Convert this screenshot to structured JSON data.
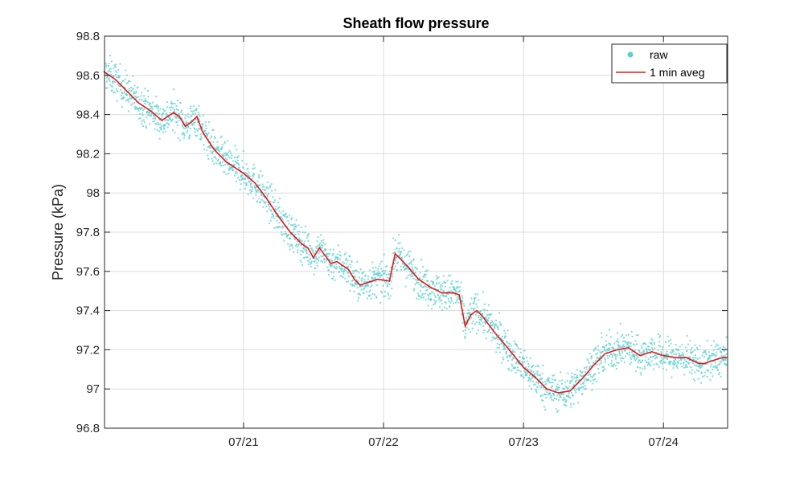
{
  "chart_data": {
    "type": "line",
    "title": "Sheath flow pressure",
    "xlabel": "",
    "ylabel": "Pressure (kPa)",
    "ylim": [
      96.8,
      98.8
    ],
    "yticks": [
      96.8,
      97,
      97.2,
      97.4,
      97.6,
      97.8,
      98,
      98.2,
      98.4,
      98.6,
      98.8
    ],
    "ytick_labels": [
      "96.8",
      "97",
      "97.2",
      "97.4",
      "97.6",
      "97.8",
      "98",
      "98.2",
      "98.4",
      "98.6",
      "98.8"
    ],
    "xlim": [
      "07/20 00:10",
      "07/24 11:00"
    ],
    "xticks": [
      "07/21",
      "07/22",
      "07/23",
      "07/24"
    ],
    "grid": true,
    "legend_position": "top-right",
    "series": [
      {
        "name": "raw",
        "kind": "scatter",
        "color": "#5ccfcf",
        "spread": 0.045,
        "note_values": "raw points scatter around the 1 min average"
      },
      {
        "name": "1 min aveg",
        "kind": "line",
        "color": "#e8171b",
        "x": [
          "07/20 00:00",
          "07/20 02:00",
          "07/20 04:00",
          "07/20 06:00",
          "07/20 08:00",
          "07/20 10:00",
          "07/20 12:00",
          "07/20 13:00",
          "07/20 14:00",
          "07/20 15:00",
          "07/20 16:00",
          "07/20 17:00",
          "07/20 19:00",
          "07/20 21:00",
          "07/21 00:00",
          "07/21 02:00",
          "07/21 04:00",
          "07/21 06:00",
          "07/21 08:00",
          "07/21 10:00",
          "07/21 11:00",
          "07/21 12:00",
          "07/21 13:00",
          "07/21 14:00",
          "07/21 15:00",
          "07/21 16:00",
          "07/21 18:00",
          "07/21 19:00",
          "07/21 20:00",
          "07/21 21:00",
          "07/21 22:00",
          "07/21 23:00",
          "07/22 01:00",
          "07/22 02:00",
          "07/22 04:00",
          "07/22 06:00",
          "07/22 08:00",
          "07/22 10:00",
          "07/22 12:00",
          "07/22 13:00",
          "07/22 14:00",
          "07/22 15:00",
          "07/22 16:00",
          "07/22 17:00",
          "07/22 19:00",
          "07/22 21:00",
          "07/23 00:00",
          "07/23 02:00",
          "07/23 04:00",
          "07/23 06:00",
          "07/23 08:00",
          "07/23 10:00",
          "07/23 12:00",
          "07/23 14:00",
          "07/23 16:00",
          "07/23 18:00",
          "07/23 20:00",
          "07/23 22:00",
          "07/24 00:00",
          "07/24 02:00",
          "07/24 04:00",
          "07/24 06:00",
          "07/24 07:00",
          "07/24 08:00",
          "07/24 10:00",
          "07/24 11:00"
        ],
        "y": [
          98.62,
          98.58,
          98.52,
          98.46,
          98.42,
          98.37,
          98.41,
          98.39,
          98.34,
          98.36,
          98.39,
          98.31,
          98.22,
          98.16,
          98.1,
          98.05,
          97.97,
          97.88,
          97.8,
          97.74,
          97.72,
          97.67,
          97.72,
          97.68,
          97.64,
          97.65,
          97.61,
          97.56,
          97.53,
          97.54,
          97.55,
          97.56,
          97.55,
          97.69,
          97.63,
          97.56,
          97.52,
          97.49,
          97.49,
          97.48,
          97.32,
          97.38,
          97.4,
          97.37,
          97.29,
          97.22,
          97.11,
          97.06,
          97.0,
          96.98,
          96.99,
          97.05,
          97.12,
          97.18,
          97.2,
          97.21,
          97.17,
          97.19,
          97.17,
          97.16,
          97.16,
          97.13,
          97.13,
          97.14,
          97.16,
          97.16
        ]
      }
    ]
  }
}
